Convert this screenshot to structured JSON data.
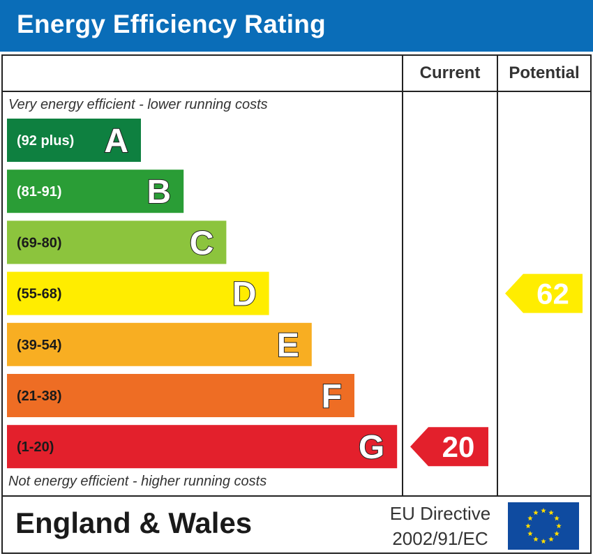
{
  "title": "Energy Efficiency Rating",
  "columns": {
    "current": "Current",
    "potential": "Potential"
  },
  "top_note": "Very energy efficient - lower running costs",
  "bottom_note": "Not energy efficient - higher running costs",
  "footer": {
    "region": "England & Wales",
    "directive_line1": "EU Directive",
    "directive_line2": "2002/91/EC"
  },
  "colors": {
    "header": "#0A6DB8",
    "eu_blue": "#0F4BA0",
    "eu_star": "#FFDD00"
  },
  "chart_data": {
    "type": "bar",
    "bands": [
      {
        "letter": "A",
        "range": "(92 plus)",
        "color": "#0E8040",
        "label_color": "#ffffff"
      },
      {
        "letter": "B",
        "range": "(81-91)",
        "color": "#2A9D36",
        "label_color": "#ffffff"
      },
      {
        "letter": "C",
        "range": "(69-80)",
        "color": "#8CC43D",
        "label_color": "#1a1a1a"
      },
      {
        "letter": "D",
        "range": "(55-68)",
        "color": "#FFED00",
        "label_color": "#1a1a1a"
      },
      {
        "letter": "E",
        "range": "(39-54)",
        "color": "#F8AE22",
        "label_color": "#1a1a1a"
      },
      {
        "letter": "F",
        "range": "(21-38)",
        "color": "#EE6D24",
        "label_color": "#1a1a1a"
      },
      {
        "letter": "G",
        "range": "(1-20)",
        "color": "#E3202C",
        "label_color": "#1a1a1a"
      }
    ],
    "current": {
      "value": 20,
      "band": "G"
    },
    "potential": {
      "value": 62,
      "band": "D"
    }
  }
}
